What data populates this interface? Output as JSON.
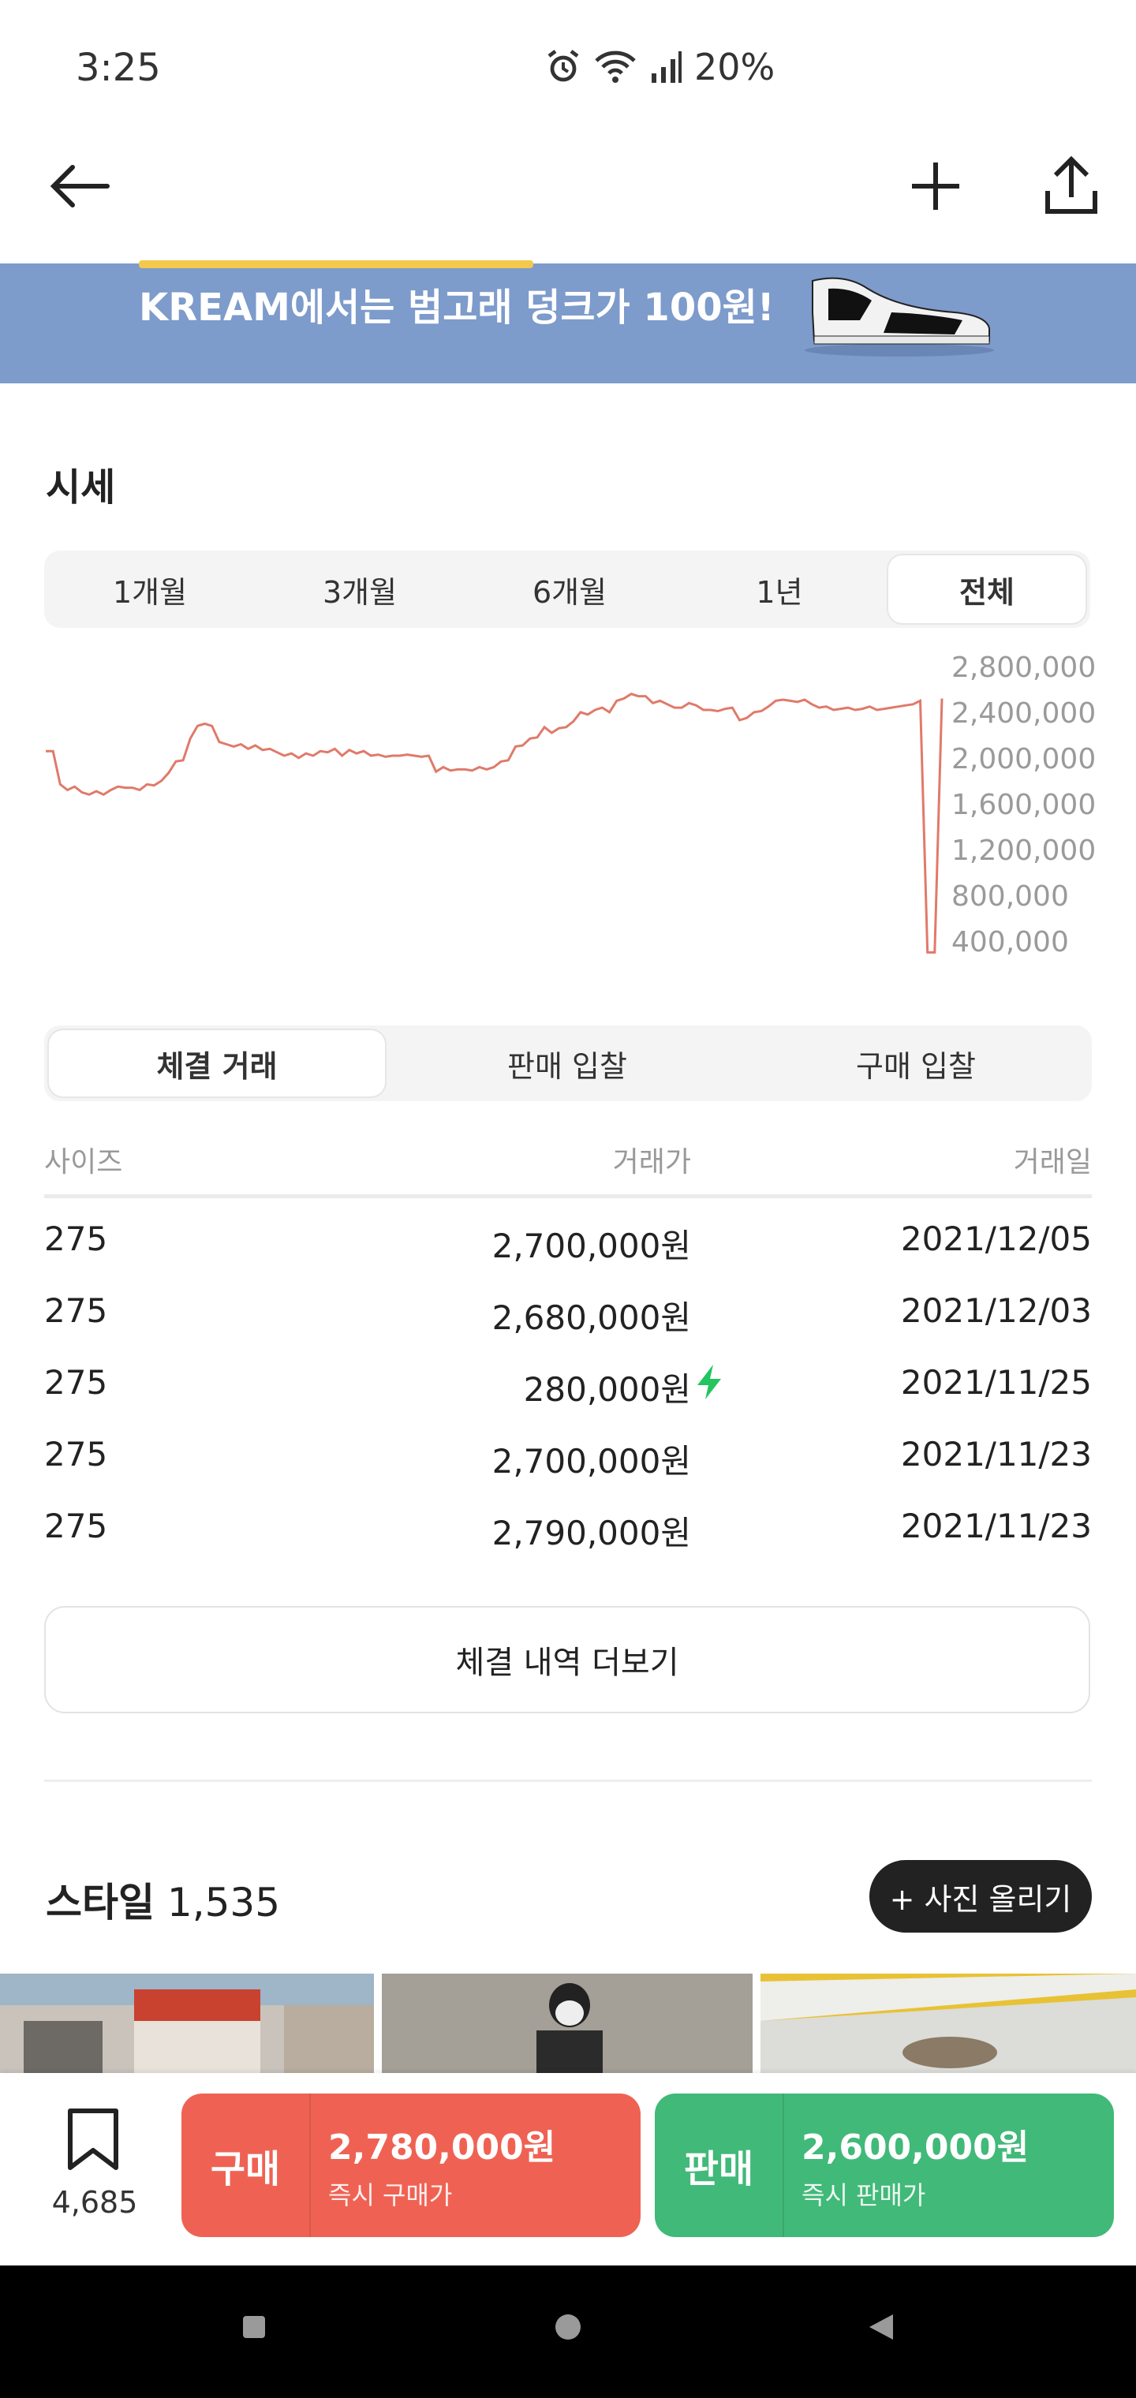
{
  "status_bar": {
    "time": "3:25",
    "battery": "20%",
    "icons": [
      "alarm-icon",
      "wifi-icon",
      "signal-icon"
    ]
  },
  "app_bar": {
    "icons": [
      "back-arrow-icon",
      "plus-icon",
      "share-icon"
    ]
  },
  "banner": {
    "text": "KREAM에서는 범고래 덩크가 100원!",
    "background": "#7d9bcb"
  },
  "price_section": {
    "title": "시세",
    "period_tabs": [
      "1개월",
      "3개월",
      "6개월",
      "1년",
      "전체"
    ],
    "active_period": "전체"
  },
  "chart_data": {
    "type": "line",
    "y_tick_labels": [
      "2,800,000",
      "2,400,000",
      "2,000,000",
      "1,600,000",
      "1,200,000",
      "800,000",
      "400,000"
    ],
    "ylim": [
      400000,
      2800000
    ],
    "line_color": "#e07a6a",
    "series": [
      {
        "values": [
          2040000,
          2040000,
          1750000,
          1700000,
          1730000,
          1680000,
          1660000,
          1690000,
          1660000,
          1700000,
          1730000,
          1720000,
          1720000,
          1700000,
          1750000,
          1740000,
          1780000,
          1850000,
          1950000,
          1960000,
          2150000,
          2260000,
          2280000,
          2260000,
          2120000,
          2100000,
          2080000,
          2100000,
          2060000,
          2090000,
          2050000,
          2060000,
          2030000,
          2000000,
          2020000,
          1980000,
          2020000,
          2000000,
          2040000,
          2030000,
          2060000,
          2000000,
          2050000,
          2020000,
          2040000,
          2000000,
          2010000,
          1990000,
          2000000,
          2000000,
          2010000,
          2000000,
          1990000,
          2000000,
          1860000,
          1900000,
          1870000,
          1880000,
          1880000,
          1870000,
          1900000,
          1880000,
          1900000,
          1950000,
          1960000,
          2080000,
          2090000,
          2150000,
          2160000,
          2250000,
          2200000,
          2240000,
          2250000,
          2300000,
          2380000,
          2360000,
          2400000,
          2420000,
          2380000,
          2480000,
          2500000,
          2540000,
          2520000,
          2520000,
          2460000,
          2480000,
          2450000,
          2420000,
          2420000,
          2460000,
          2440000,
          2400000,
          2400000,
          2390000,
          2410000,
          2420000,
          2310000,
          2330000,
          2380000,
          2390000,
          2430000,
          2480000,
          2490000,
          2480000,
          2470000,
          2490000,
          2450000,
          2420000,
          2430000,
          2400000,
          2410000,
          2420000,
          2400000,
          2410000,
          2430000,
          2400000,
          2410000,
          2420000,
          2430000,
          2440000,
          2450000,
          2480000,
          280000,
          280000,
          2500000
        ]
      }
    ],
    "grid": false
  },
  "trades": {
    "tabs": [
      "체결 거래",
      "판매 입찰",
      "구매 입찰"
    ],
    "active_tab": "체결 거래",
    "headers": [
      "사이즈",
      "거래가",
      "거래일"
    ],
    "rows": [
      {
        "size": "275",
        "price": "2,700,000원",
        "date": "2021/12/05",
        "flash": false
      },
      {
        "size": "275",
        "price": "2,680,000원",
        "date": "2021/12/03",
        "flash": false
      },
      {
        "size": "275",
        "price": "280,000원",
        "date": "2021/11/25",
        "flash": true
      },
      {
        "size": "275",
        "price": "2,700,000원",
        "date": "2021/11/23",
        "flash": false
      },
      {
        "size": "275",
        "price": "2,790,000원",
        "date": "2021/11/23",
        "flash": false
      }
    ],
    "more_label": "체결 내역 더보기"
  },
  "style_section": {
    "title": "스타일",
    "count": "1,535",
    "upload_label": "+ 사진 올리기"
  },
  "bottom_bar": {
    "bookmark_count": "4,685",
    "buy": {
      "label": "구매",
      "price": "2,780,000원",
      "sub": "즉시 구매가",
      "color": "#ef6253"
    },
    "sell": {
      "label": "판매",
      "price": "2,600,000원",
      "sub": "즉시 판매가",
      "color": "#41b979"
    }
  },
  "nav_bar": {
    "icons": [
      "recents-square-icon",
      "home-circle-icon",
      "back-triangle-icon"
    ]
  }
}
